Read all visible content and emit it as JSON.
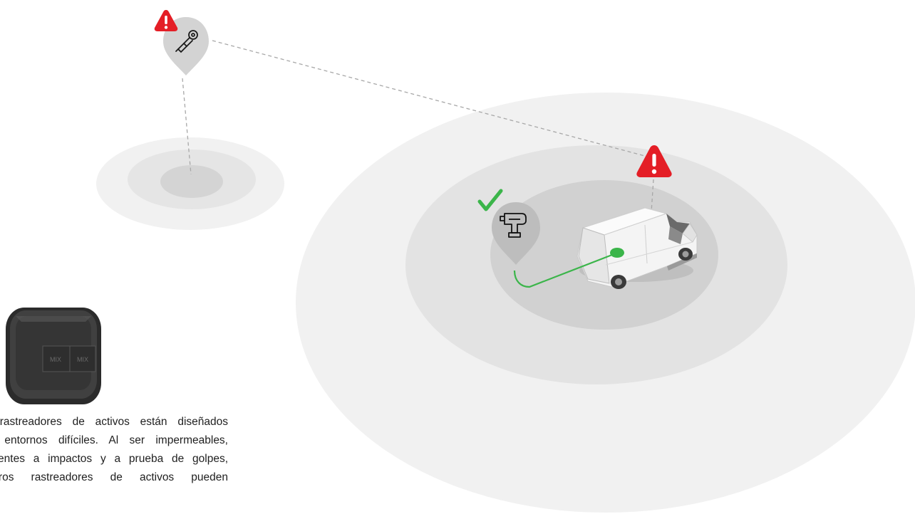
{
  "description_lines": [
    "Los rastreadores de activos están diseñados",
    "para entornos difíciles. Al ser impermeables,",
    "resistentes a impactos y a prueba de golpes,",
    "nuestros rastreadores de activos pueden"
  ],
  "device_label": "MIX",
  "colors": {
    "alert_red": "#e41e26",
    "ok_green": "#3bb54a",
    "zone_light": "#f1f1f1",
    "zone_mid": "#e2e2e2",
    "zone_dark": "#d1d1d1",
    "pin_fill": "#d0d0d0",
    "connector": "#aaaaaa"
  },
  "icons": {
    "grinder_pin": "angle-grinder-icon",
    "drill_pin": "power-drill-icon",
    "warning": "warning-triangle-icon",
    "check": "checkmark-icon",
    "vehicle": "delivery-van",
    "tracker": "asset-tracker-device"
  }
}
